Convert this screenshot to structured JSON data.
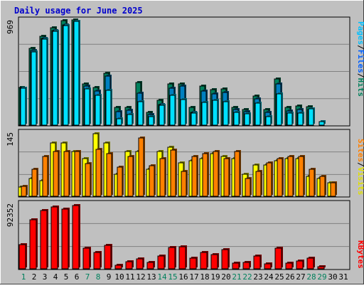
{
  "title": "Daily usage for June 2025",
  "colors": {
    "frame_bg": "#c0c0c0",
    "title_text": "#0000cc",
    "hits_face": "#00805c",
    "files_face": "#00e0ff",
    "visits_face": "#ffff00",
    "sites_face": "#ff8000",
    "kbytes_face": "#ff0000",
    "weekend_label": "#00805c",
    "weekday_label": "#000000"
  },
  "chart_data": [
    {
      "type": "bar",
      "panel": "hits-files-pages",
      "ymax_label": "969",
      "ymax": 969,
      "right_labels": [
        {
          "text": "Pages",
          "color": "#00c0ff"
        },
        {
          "text": "/",
          "color": "#000000"
        },
        {
          "text": "Files",
          "color": "#0060ff"
        },
        {
          "text": "/",
          "color": "#000000"
        },
        {
          "text": "Hits",
          "color": "#00805c"
        }
      ],
      "categories": [
        "1",
        "2",
        "3",
        "4",
        "5",
        "6",
        "7",
        "8",
        "9",
        "10",
        "11",
        "12",
        "13",
        "14",
        "15",
        "16",
        "17",
        "18",
        "19",
        "20",
        "21",
        "22",
        "23",
        "24",
        "25",
        "26",
        "27",
        "28",
        "29",
        "30",
        "31"
      ],
      "series": [
        {
          "key": "hits",
          "values": [
            345,
            700,
            815,
            890,
            955,
            960,
            375,
            345,
            475,
            160,
            160,
            390,
            115,
            230,
            375,
            375,
            160,
            355,
            325,
            330,
            160,
            145,
            265,
            145,
            420,
            160,
            175,
            170,
            0,
            0,
            0
          ]
        },
        {
          "key": "files",
          "values": [
            340,
            680,
            795,
            865,
            915,
            950,
            355,
            310,
            450,
            125,
            135,
            295,
            100,
            190,
            340,
            360,
            120,
            310,
            285,
            300,
            140,
            125,
            240,
            120,
            380,
            130,
            140,
            140,
            0,
            0,
            0
          ]
        },
        {
          "key": "pages",
          "values": [
            340,
            670,
            790,
            860,
            910,
            950,
            330,
            275,
            320,
            60,
            100,
            215,
            80,
            185,
            270,
            235,
            110,
            205,
            225,
            215,
            115,
            105,
            200,
            80,
            285,
            110,
            110,
            150,
            30,
            0,
            0
          ]
        }
      ]
    },
    {
      "type": "bar",
      "panel": "visits-sites",
      "ymax_label": "145",
      "ymax": 145,
      "right_labels": [
        {
          "text": "Sites",
          "color": "#ff8000"
        },
        {
          "text": "/",
          "color": "#000000"
        },
        {
          "text": "Visits",
          "color": "#e0e000"
        },
        {
          "text": "",
          "color": "#000000"
        }
      ],
      "categories": [
        "1",
        "2",
        "3",
        "4",
        "5",
        "6",
        "7",
        "8",
        "9",
        "10",
        "11",
        "12",
        "13",
        "14",
        "15",
        "16",
        "17",
        "18",
        "19",
        "20",
        "21",
        "22",
        "23",
        "24",
        "25",
        "26",
        "27",
        "28",
        "29",
        "30",
        "31"
      ],
      "series": [
        {
          "key": "visits",
          "values": [
            20,
            40,
            35,
            120,
            120,
            100,
            85,
            140,
            120,
            50,
            100,
            100,
            60,
            100,
            110,
            75,
            80,
            85,
            95,
            90,
            85,
            50,
            70,
            70,
            80,
            85,
            85,
            45,
            40,
            30,
            0
          ]
        },
        {
          "key": "sites",
          "values": [
            23,
            60,
            90,
            100,
            100,
            100,
            73,
            105,
            95,
            65,
            90,
            130,
            68,
            85,
            103,
            55,
            90,
            95,
            100,
            85,
            100,
            40,
            55,
            75,
            85,
            90,
            90,
            60,
            45,
            30,
            0
          ]
        }
      ]
    },
    {
      "type": "bar",
      "panel": "kbytes",
      "ymax_label": "92352",
      "ymax": 92352,
      "right_labels": [
        {
          "text": "KBytes",
          "color": "#ff0000"
        }
      ],
      "categories": [
        "1",
        "2",
        "3",
        "4",
        "5",
        "6",
        "7",
        "8",
        "9",
        "10",
        "11",
        "12",
        "13",
        "14",
        "15",
        "16",
        "17",
        "18",
        "19",
        "20",
        "21",
        "22",
        "23",
        "24",
        "25",
        "26",
        "27",
        "28",
        "29",
        "30",
        "31"
      ],
      "series": [
        {
          "key": "kbytes",
          "values": [
            34000,
            68500,
            81500,
            86500,
            83000,
            88500,
            28500,
            22500,
            32500,
            4500,
            9500,
            14000,
            8500,
            17500,
            29500,
            31000,
            14500,
            22500,
            20000,
            27000,
            7500,
            9000,
            18000,
            6500,
            28500,
            8000,
            10500,
            15000,
            3000,
            0,
            0
          ]
        }
      ]
    }
  ],
  "x_labels": [
    {
      "text": "1",
      "weekend": true
    },
    {
      "text": "2",
      "weekend": false
    },
    {
      "text": "3",
      "weekend": false
    },
    {
      "text": "4",
      "weekend": false
    },
    {
      "text": "5",
      "weekend": false
    },
    {
      "text": "6",
      "weekend": false
    },
    {
      "text": "7",
      "weekend": true
    },
    {
      "text": "8",
      "weekend": true
    },
    {
      "text": "9",
      "weekend": false
    },
    {
      "text": "10",
      "weekend": false
    },
    {
      "text": "11",
      "weekend": false
    },
    {
      "text": "12",
      "weekend": false
    },
    {
      "text": "13",
      "weekend": false
    },
    {
      "text": "14",
      "weekend": true
    },
    {
      "text": "15",
      "weekend": true
    },
    {
      "text": "16",
      "weekend": false
    },
    {
      "text": "17",
      "weekend": false
    },
    {
      "text": "18",
      "weekend": false
    },
    {
      "text": "19",
      "weekend": false
    },
    {
      "text": "20",
      "weekend": false
    },
    {
      "text": "21",
      "weekend": true
    },
    {
      "text": "22",
      "weekend": true
    },
    {
      "text": "23",
      "weekend": false
    },
    {
      "text": "24",
      "weekend": false
    },
    {
      "text": "25",
      "weekend": false
    },
    {
      "text": "26",
      "weekend": false
    },
    {
      "text": "27",
      "weekend": false
    },
    {
      "text": "28",
      "weekend": true
    },
    {
      "text": "29",
      "weekend": true
    },
    {
      "text": "30",
      "weekend": false
    },
    {
      "text": "31",
      "weekend": false
    }
  ]
}
